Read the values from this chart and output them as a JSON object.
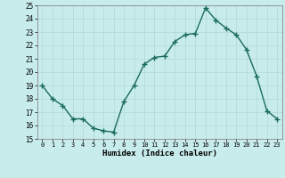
{
  "x": [
    0,
    1,
    2,
    3,
    4,
    5,
    6,
    7,
    8,
    9,
    10,
    11,
    12,
    13,
    14,
    15,
    16,
    17,
    18,
    19,
    20,
    21,
    22,
    23
  ],
  "y": [
    19,
    18,
    17.5,
    16.5,
    16.5,
    15.8,
    15.6,
    15.5,
    17.8,
    19.0,
    20.6,
    21.1,
    21.2,
    22.3,
    22.8,
    22.9,
    24.8,
    23.9,
    23.3,
    22.8,
    21.7,
    19.7,
    17.1,
    16.5
  ],
  "xlabel": "Humidex (Indice chaleur)",
  "ylabel": "",
  "ylim": [
    15,
    25
  ],
  "xlim": [
    -0.5,
    23.5
  ],
  "yticks": [
    15,
    16,
    17,
    18,
    19,
    20,
    21,
    22,
    23,
    24,
    25
  ],
  "xticks": [
    0,
    1,
    2,
    3,
    4,
    5,
    6,
    7,
    8,
    9,
    10,
    11,
    12,
    13,
    14,
    15,
    16,
    17,
    18,
    19,
    20,
    21,
    22,
    23
  ],
  "line_color": "#1a6b5a",
  "marker_color": "#1a6b5a",
  "bg_color": "#c8ecec",
  "grid_color": "#b0d8d8",
  "title": ""
}
